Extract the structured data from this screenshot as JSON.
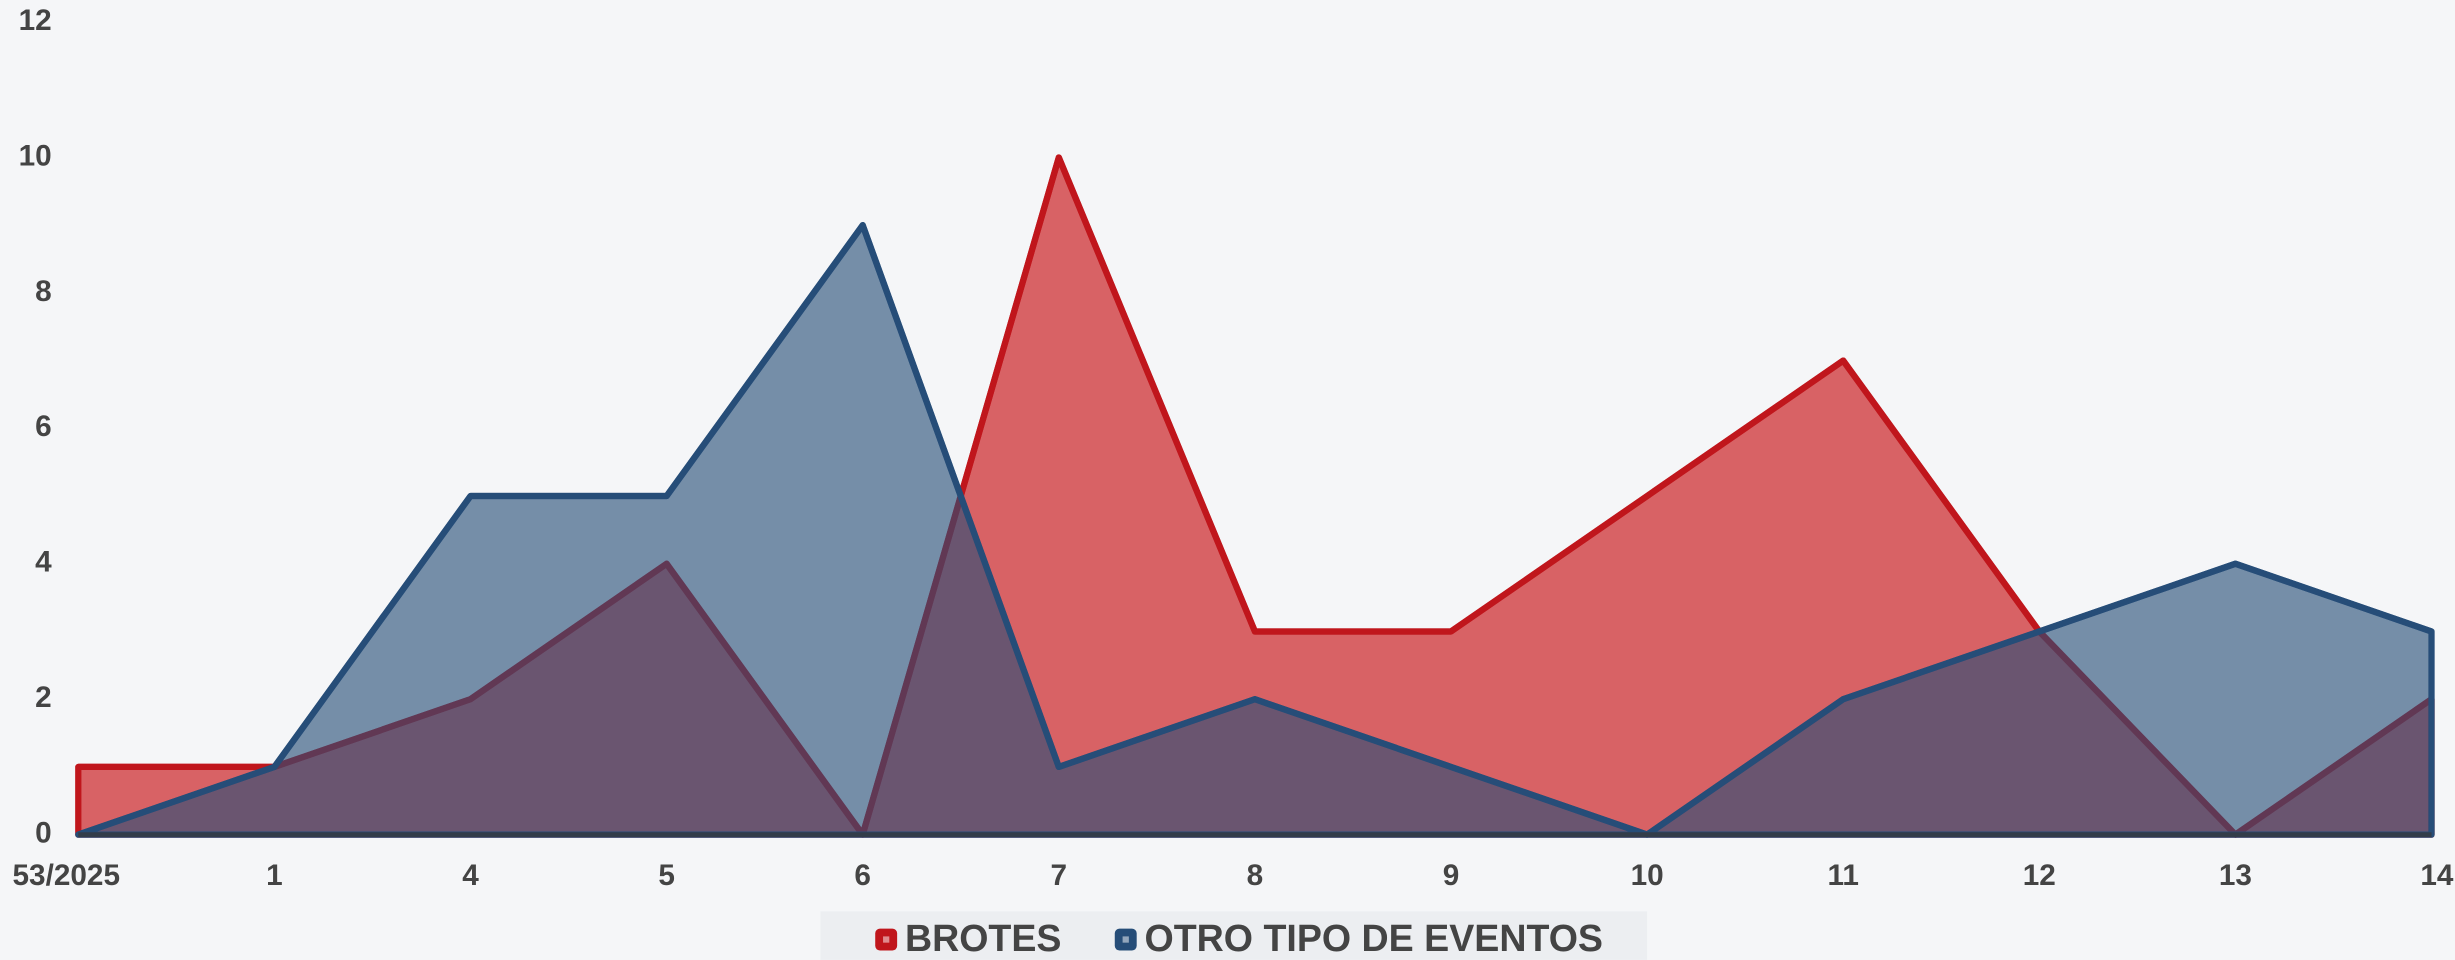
{
  "chart_data": {
    "type": "area",
    "categories": [
      "53/2025",
      "1",
      "4",
      "5",
      "6",
      "7",
      "8",
      "9",
      "10",
      "11",
      "12",
      "13",
      "14"
    ],
    "series": [
      {
        "name": "BROTES",
        "color": "#c0161c",
        "values": [
          1,
          1,
          2,
          4,
          0,
          10,
          3,
          3,
          5,
          7,
          3,
          0,
          2
        ]
      },
      {
        "name": "OTRO TIPO DE EVENTOS",
        "color": "#264d78",
        "values": [
          0,
          1,
          5,
          5,
          9,
          1,
          2,
          1,
          0,
          2,
          3,
          4,
          3
        ]
      }
    ],
    "ylim": [
      0,
      12
    ],
    "yticks": [
      0,
      2,
      4,
      6,
      8,
      10,
      12
    ],
    "grid": false,
    "legend": "bottom"
  }
}
